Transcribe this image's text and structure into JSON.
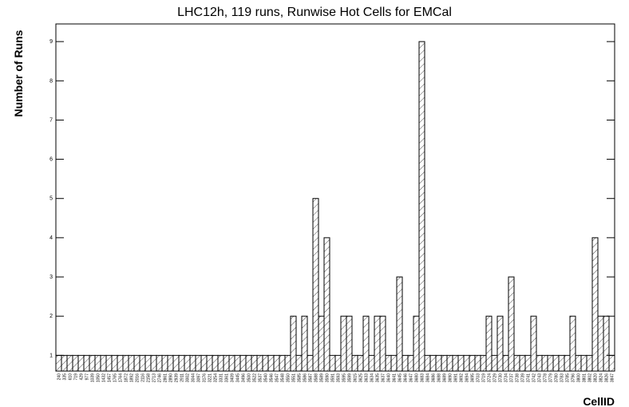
{
  "chart_data": {
    "type": "bar",
    "title": "LHC12h, 119 runs, Runwise Hot Cells for EMCal",
    "x_label": "CellID",
    "y_label": "Number of Runs",
    "categories": [
      "240",
      "335",
      "610",
      "719",
      "429",
      "977",
      "1039",
      "1050",
      "1432",
      "1457",
      "1765",
      "1764",
      "1872",
      "1892",
      "2016",
      "2116",
      "2158",
      "2713",
      "2746",
      "2861",
      "2890",
      "2939",
      "2911",
      "3002",
      "3044",
      "3097",
      "3176",
      "3221",
      "3254",
      "3331",
      "3361",
      "3409",
      "3445",
      "3496",
      "3500",
      "3522",
      "3537",
      "3540",
      "3546",
      "3547",
      "3548",
      "3550",
      "3551",
      "3585",
      "3586",
      "3587",
      "3588",
      "3589",
      "3590",
      "3591",
      "3593",
      "3595",
      "3599",
      "3615",
      "3625",
      "3633",
      "3634",
      "3635",
      "3637",
      "3640",
      "3641",
      "3645",
      "3646",
      "3647",
      "3680",
      "3683",
      "3684",
      "3686",
      "3688",
      "3689",
      "3690",
      "3691",
      "3692",
      "3694",
      "3695",
      "3703",
      "3719",
      "3724",
      "3729",
      "3730",
      "3734",
      "3737",
      "3738",
      "3739",
      "3741",
      "3742",
      "3743",
      "3778",
      "3779",
      "3780",
      "3783",
      "3785",
      "3796",
      "3800",
      "3801",
      "3802",
      "3820",
      "3824",
      "3826",
      "3847"
    ],
    "values": [
      1,
      1,
      1,
      1,
      1,
      1,
      1,
      1,
      1,
      1,
      1,
      1,
      1,
      1,
      1,
      1,
      1,
      1,
      1,
      1,
      1,
      1,
      1,
      1,
      1,
      1,
      1,
      1,
      1,
      1,
      1,
      1,
      1,
      1,
      1,
      1,
      1,
      1,
      1,
      1,
      1,
      1,
      2,
      1,
      2,
      1,
      5,
      2,
      4,
      1,
      1,
      2,
      2,
      1,
      1,
      2,
      1,
      2,
      2,
      1,
      1,
      3,
      1,
      1,
      2,
      9,
      1,
      1,
      1,
      1,
      1,
      1,
      1,
      1,
      1,
      1,
      1,
      2,
      1,
      2,
      1,
      3,
      1,
      1,
      1,
      2,
      1,
      1,
      1,
      1,
      1,
      1,
      2,
      1,
      1,
      1,
      4,
      2,
      2,
      1
    ],
    "color": "#000000",
    "ylim": [
      0.6,
      9.45
    ],
    "yticks": [
      1,
      2,
      3,
      4,
      5,
      6,
      7,
      8,
      9
    ]
  }
}
